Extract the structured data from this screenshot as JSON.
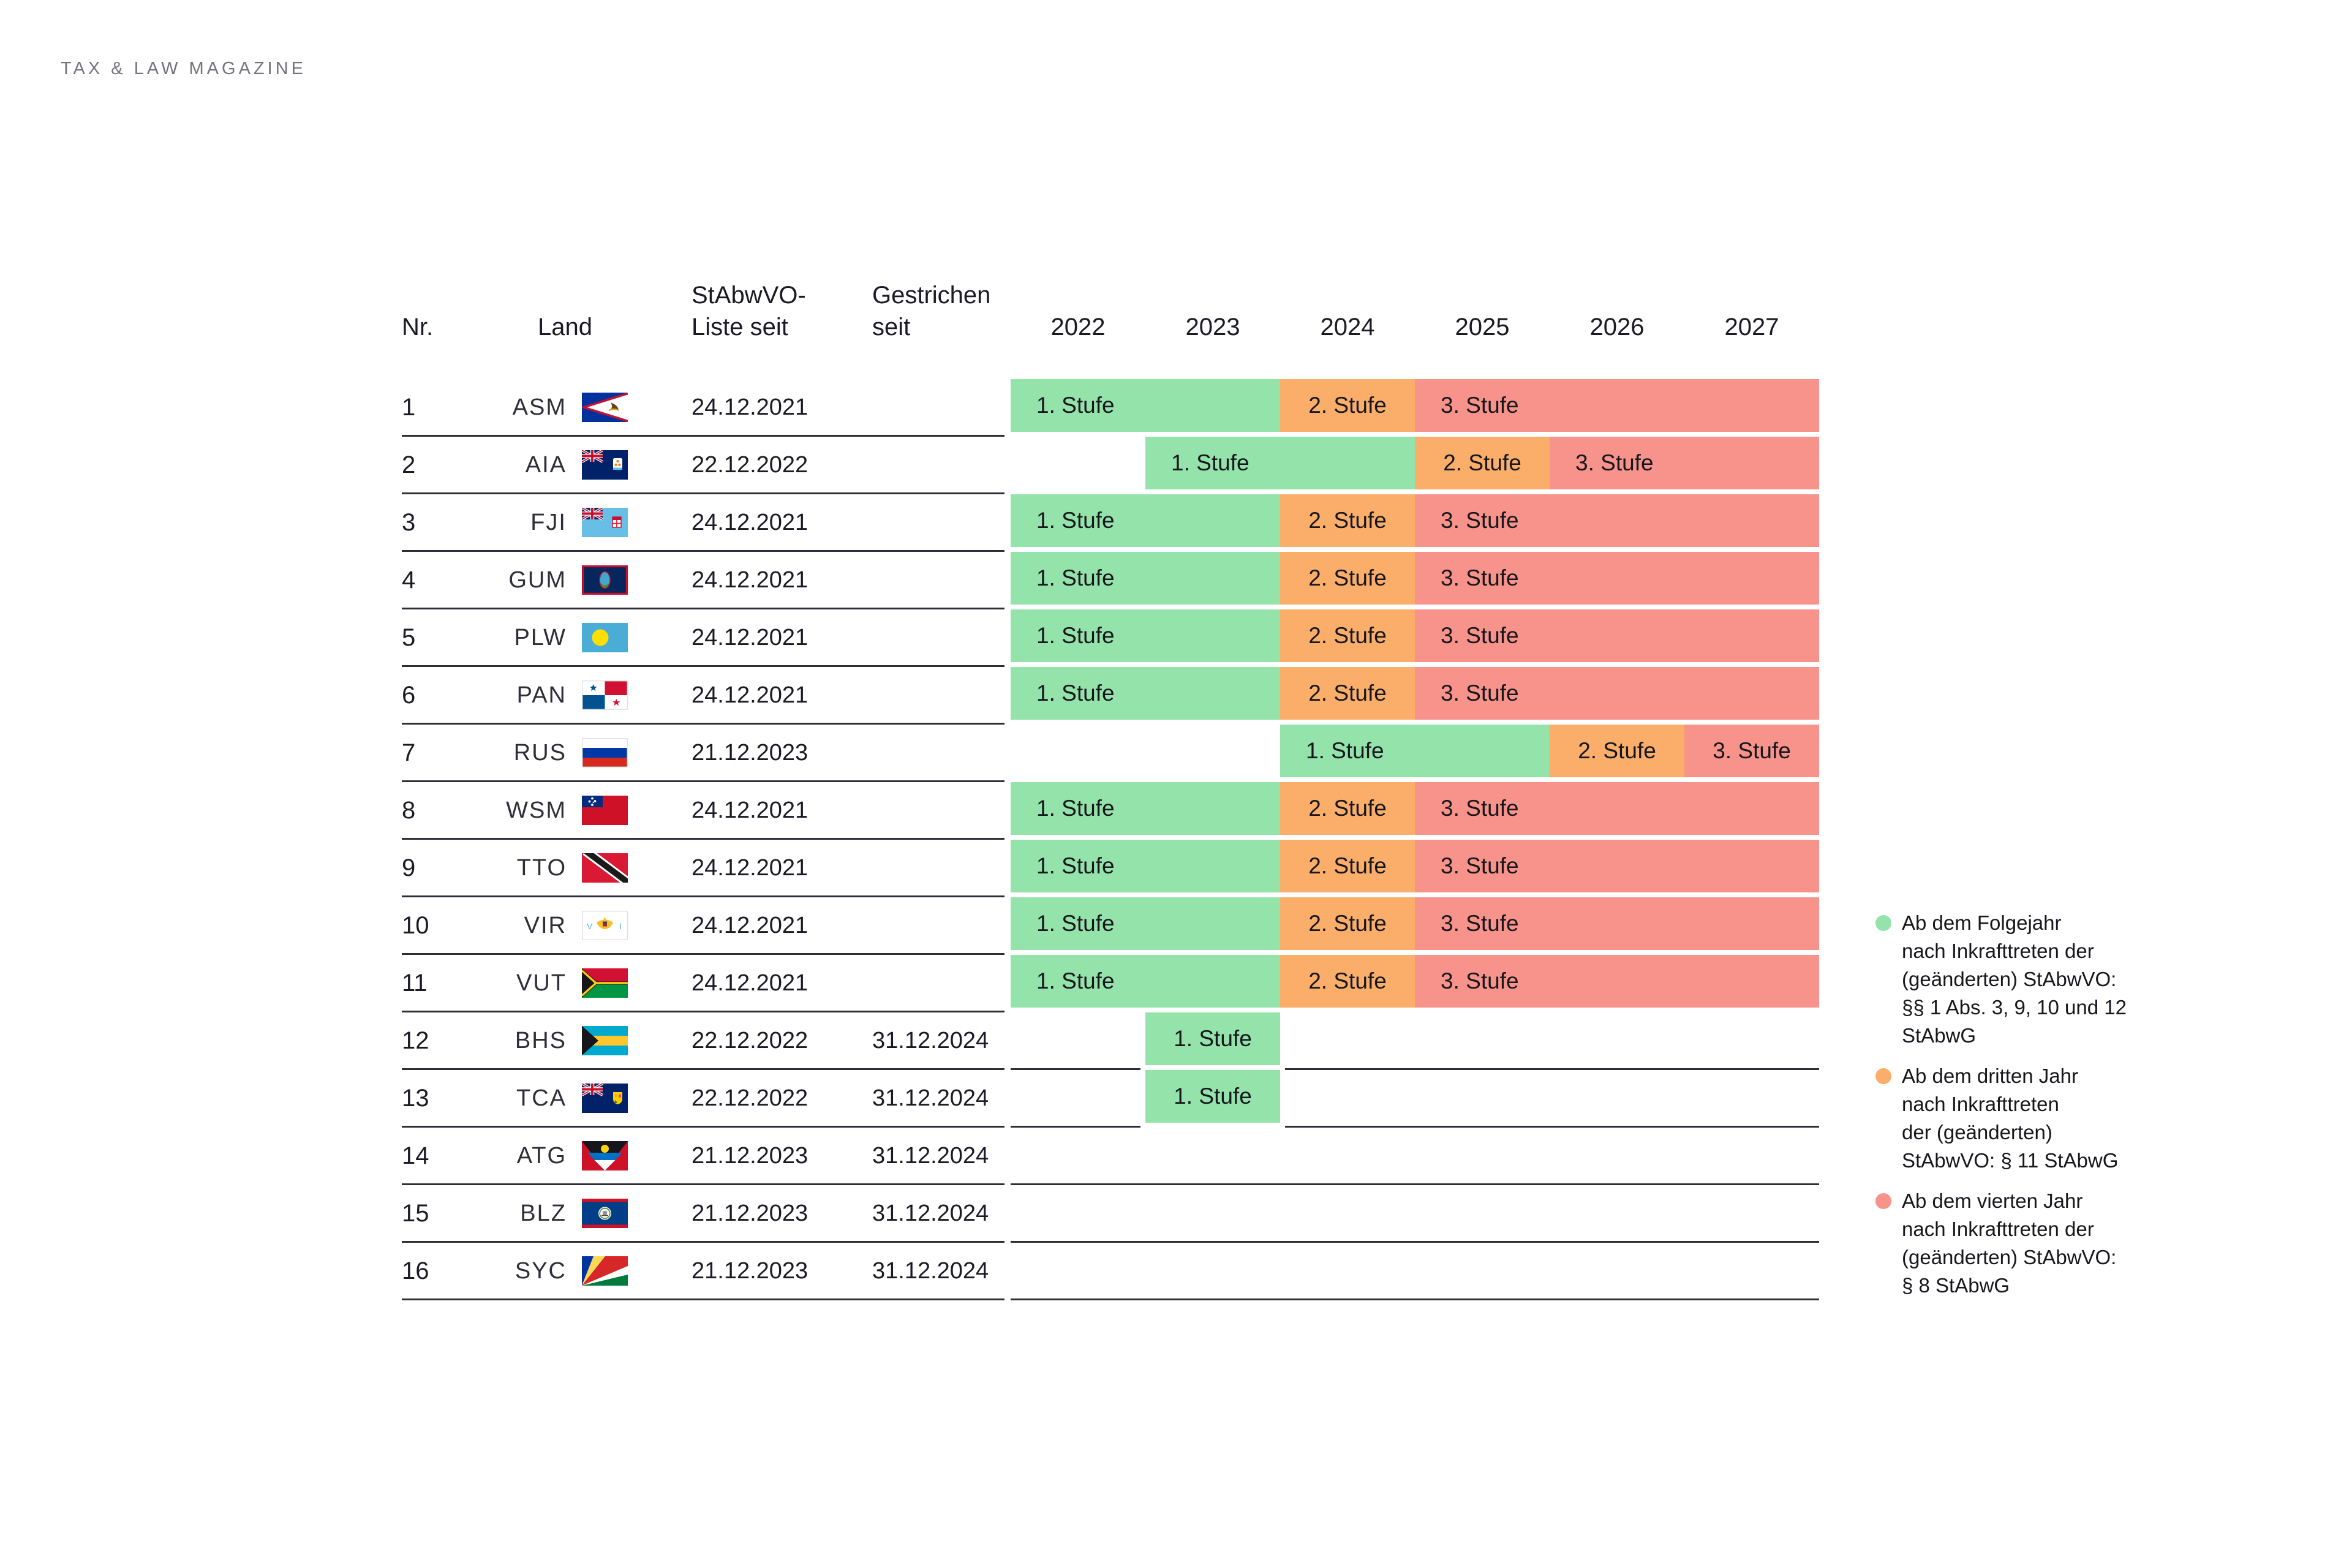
{
  "brand": {
    "logo_text": "TAX & LAW MAGAZINE"
  },
  "colors": {
    "stage1": "#93E3AB",
    "stage2": "#FAAE69",
    "stage3": "#F8938B",
    "line": "#2E2E38",
    "text": "#1A1A24",
    "logo_gray": "#747480"
  },
  "table": {
    "headers": {
      "nr": "Nr.",
      "land": "Land",
      "liste_line1": "StAbwVO-",
      "liste_line2": "Liste seit",
      "gestrichen_line1": "Gestrichen",
      "gestrichen_line2": "seit",
      "years": [
        "2022",
        "2023",
        "2024",
        "2025",
        "2026",
        "2027"
      ]
    },
    "rows": [
      {
        "nr": "1",
        "code": "ASM",
        "liste_seit": "24.12.2021",
        "gestrichen_seit": "",
        "bars": [
          {
            "label": "1. Stufe",
            "stage": "stage1",
            "from": 2022,
            "to": 2023
          },
          {
            "label": "2. Stufe",
            "stage": "stage2",
            "from": 2024,
            "to": 2024
          },
          {
            "label": "3. Stufe",
            "stage": "stage3",
            "from": 2025,
            "to": 2027
          }
        ]
      },
      {
        "nr": "2",
        "code": "AIA",
        "liste_seit": "22.12.2022",
        "gestrichen_seit": "",
        "bars": [
          {
            "label": "1. Stufe",
            "stage": "stage1",
            "from": 2023,
            "to": 2024
          },
          {
            "label": "2. Stufe",
            "stage": "stage2",
            "from": 2025,
            "to": 2025
          },
          {
            "label": "3. Stufe",
            "stage": "stage3",
            "from": 2026,
            "to": 2027
          }
        ]
      },
      {
        "nr": "3",
        "code": "FJI",
        "liste_seit": "24.12.2021",
        "gestrichen_seit": "",
        "bars": [
          {
            "label": "1. Stufe",
            "stage": "stage1",
            "from": 2022,
            "to": 2023
          },
          {
            "label": "2. Stufe",
            "stage": "stage2",
            "from": 2024,
            "to": 2024
          },
          {
            "label": "3. Stufe",
            "stage": "stage3",
            "from": 2025,
            "to": 2027
          }
        ]
      },
      {
        "nr": "4",
        "code": "GUM",
        "liste_seit": "24.12.2021",
        "gestrichen_seit": "",
        "bars": [
          {
            "label": "1. Stufe",
            "stage": "stage1",
            "from": 2022,
            "to": 2023
          },
          {
            "label": "2. Stufe",
            "stage": "stage2",
            "from": 2024,
            "to": 2024
          },
          {
            "label": "3. Stufe",
            "stage": "stage3",
            "from": 2025,
            "to": 2027
          }
        ]
      },
      {
        "nr": "5",
        "code": "PLW",
        "liste_seit": "24.12.2021",
        "gestrichen_seit": "",
        "bars": [
          {
            "label": "1. Stufe",
            "stage": "stage1",
            "from": 2022,
            "to": 2023
          },
          {
            "label": "2. Stufe",
            "stage": "stage2",
            "from": 2024,
            "to": 2024
          },
          {
            "label": "3. Stufe",
            "stage": "stage3",
            "from": 2025,
            "to": 2027
          }
        ]
      },
      {
        "nr": "6",
        "code": "PAN",
        "liste_seit": "24.12.2021",
        "gestrichen_seit": "",
        "bars": [
          {
            "label": "1. Stufe",
            "stage": "stage1",
            "from": 2022,
            "to": 2023
          },
          {
            "label": "2. Stufe",
            "stage": "stage2",
            "from": 2024,
            "to": 2024
          },
          {
            "label": "3. Stufe",
            "stage": "stage3",
            "from": 2025,
            "to": 2027
          }
        ]
      },
      {
        "nr": "7",
        "code": "RUS",
        "liste_seit": "21.12.2023",
        "gestrichen_seit": "",
        "bars": [
          {
            "label": "1. Stufe",
            "stage": "stage1",
            "from": 2024,
            "to": 2025
          },
          {
            "label": "2. Stufe",
            "stage": "stage2",
            "from": 2026,
            "to": 2026
          },
          {
            "label": "3. Stufe",
            "stage": "stage3",
            "from": 2027,
            "to": 2027
          }
        ]
      },
      {
        "nr": "8",
        "code": "WSM",
        "liste_seit": "24.12.2021",
        "gestrichen_seit": "",
        "bars": [
          {
            "label": "1. Stufe",
            "stage": "stage1",
            "from": 2022,
            "to": 2023
          },
          {
            "label": "2. Stufe",
            "stage": "stage2",
            "from": 2024,
            "to": 2024
          },
          {
            "label": "3. Stufe",
            "stage": "stage3",
            "from": 2025,
            "to": 2027
          }
        ]
      },
      {
        "nr": "9",
        "code": "TTO",
        "liste_seit": "24.12.2021",
        "gestrichen_seit": "",
        "bars": [
          {
            "label": "1. Stufe",
            "stage": "stage1",
            "from": 2022,
            "to": 2023
          },
          {
            "label": "2. Stufe",
            "stage": "stage2",
            "from": 2024,
            "to": 2024
          },
          {
            "label": "3. Stufe",
            "stage": "stage3",
            "from": 2025,
            "to": 2027
          }
        ]
      },
      {
        "nr": "10",
        "code": "VIR",
        "liste_seit": "24.12.2021",
        "gestrichen_seit": "",
        "bars": [
          {
            "label": "1. Stufe",
            "stage": "stage1",
            "from": 2022,
            "to": 2023
          },
          {
            "label": "2. Stufe",
            "stage": "stage2",
            "from": 2024,
            "to": 2024
          },
          {
            "label": "3. Stufe",
            "stage": "stage3",
            "from": 2025,
            "to": 2027
          }
        ]
      },
      {
        "nr": "11",
        "code": "VUT",
        "liste_seit": "24.12.2021",
        "gestrichen_seit": "",
        "bars": [
          {
            "label": "1. Stufe",
            "stage": "stage1",
            "from": 2022,
            "to": 2023
          },
          {
            "label": "2. Stufe",
            "stage": "stage2",
            "from": 2024,
            "to": 2024
          },
          {
            "label": "3. Stufe",
            "stage": "stage3",
            "from": 2025,
            "to": 2027
          }
        ]
      },
      {
        "nr": "12",
        "code": "BHS",
        "liste_seit": "22.12.2022",
        "gestrichen_seit": "31.12.2024",
        "bars": [
          {
            "label": "1. Stufe",
            "stage": "stage1",
            "from": 2023,
            "to": 2023
          }
        ]
      },
      {
        "nr": "13",
        "code": "TCA",
        "liste_seit": "22.12.2022",
        "gestrichen_seit": "31.12.2024",
        "bars": [
          {
            "label": "1. Stufe",
            "stage": "stage1",
            "from": 2023,
            "to": 2023
          }
        ]
      },
      {
        "nr": "14",
        "code": "ATG",
        "liste_seit": "21.12.2023",
        "gestrichen_seit": "31.12.2024",
        "bars": []
      },
      {
        "nr": "15",
        "code": "BLZ",
        "liste_seit": "21.12.2023",
        "gestrichen_seit": "31.12.2024",
        "bars": []
      },
      {
        "nr": "16",
        "code": "SYC",
        "liste_seit": "21.12.2023",
        "gestrichen_seit": "31.12.2024",
        "bars": []
      }
    ]
  },
  "legend": [
    {
      "stage": "stage1",
      "lines": [
        "Ab dem Folgejahr",
        "nach Inkrafttreten der",
        "(geänderten) StAbwVO:",
        "§§ 1 Abs. 3, 9, 10 und 12",
        "StAbwG"
      ]
    },
    {
      "stage": "stage2",
      "lines": [
        "Ab dem dritten Jahr",
        "nach Inkrafttreten",
        "der (geänderten)",
        "StAbwVO: § 11 StAbwG"
      ]
    },
    {
      "stage": "stage3",
      "lines": [
        "Ab dem vierten Jahr",
        "nach Inkrafttreten der",
        "(geänderten) StAbwVO:",
        "§ 8 StAbwG"
      ]
    }
  ],
  "chart_data": {
    "type": "table",
    "title": "StAbwVO-Liste Zeitplan der Stufen",
    "columns": [
      "Nr.",
      "Land",
      "StAbwVO-Liste seit",
      "Gestrichen seit",
      "2022",
      "2023",
      "2024",
      "2025",
      "2026",
      "2027"
    ],
    "stage_year_map": [
      {
        "land": "ASM",
        "stufe1": [
          2022,
          2023
        ],
        "stufe2": [
          2024
        ],
        "stufe3": [
          2025,
          2026,
          2027
        ]
      },
      {
        "land": "AIA",
        "stufe1": [
          2023,
          2024
        ],
        "stufe2": [
          2025
        ],
        "stufe3": [
          2026,
          2027
        ]
      },
      {
        "land": "FJI",
        "stufe1": [
          2022,
          2023
        ],
        "stufe2": [
          2024
        ],
        "stufe3": [
          2025,
          2026,
          2027
        ]
      },
      {
        "land": "GUM",
        "stufe1": [
          2022,
          2023
        ],
        "stufe2": [
          2024
        ],
        "stufe3": [
          2025,
          2026,
          2027
        ]
      },
      {
        "land": "PLW",
        "stufe1": [
          2022,
          2023
        ],
        "stufe2": [
          2024
        ],
        "stufe3": [
          2025,
          2026,
          2027
        ]
      },
      {
        "land": "PAN",
        "stufe1": [
          2022,
          2023
        ],
        "stufe2": [
          2024
        ],
        "stufe3": [
          2025,
          2026,
          2027
        ]
      },
      {
        "land": "RUS",
        "stufe1": [
          2024,
          2025
        ],
        "stufe2": [
          2026
        ],
        "stufe3": [
          2027
        ]
      },
      {
        "land": "WSM",
        "stufe1": [
          2022,
          2023
        ],
        "stufe2": [
          2024
        ],
        "stufe3": [
          2025,
          2026,
          2027
        ]
      },
      {
        "land": "TTO",
        "stufe1": [
          2022,
          2023
        ],
        "stufe2": [
          2024
        ],
        "stufe3": [
          2025,
          2026,
          2027
        ]
      },
      {
        "land": "VIR",
        "stufe1": [
          2022,
          2023
        ],
        "stufe2": [
          2024
        ],
        "stufe3": [
          2025,
          2026,
          2027
        ]
      },
      {
        "land": "VUT",
        "stufe1": [
          2022,
          2023
        ],
        "stufe2": [
          2024
        ],
        "stufe3": [
          2025,
          2026,
          2027
        ]
      },
      {
        "land": "BHS",
        "stufe1": [
          2023
        ],
        "stufe2": [],
        "stufe3": []
      },
      {
        "land": "TCA",
        "stufe1": [
          2023
        ],
        "stufe2": [],
        "stufe3": []
      },
      {
        "land": "ATG",
        "stufe1": [],
        "stufe2": [],
        "stufe3": []
      },
      {
        "land": "BLZ",
        "stufe1": [],
        "stufe2": [],
        "stufe3": []
      },
      {
        "land": "SYC",
        "stufe1": [],
        "stufe2": [],
        "stufe3": []
      }
    ]
  }
}
